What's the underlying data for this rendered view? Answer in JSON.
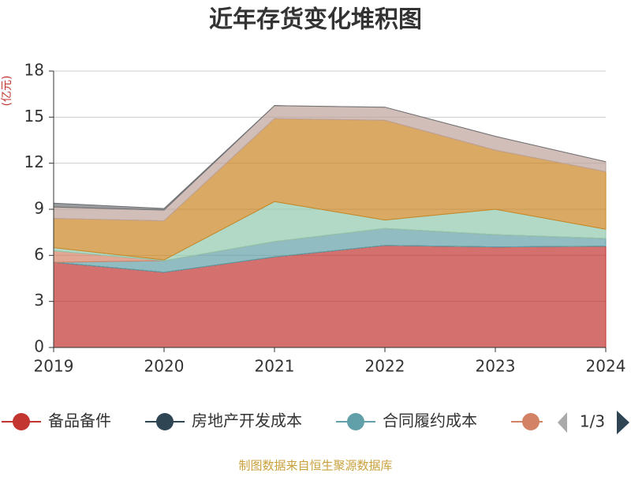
{
  "chart_data": {
    "type": "stacked-area",
    "title": "近年存货变化堆积图",
    "y_label": "(亿元)",
    "source": "制图数据来自恒生聚源数据库",
    "legend_page": "1/3",
    "categories": [
      "2019",
      "2020",
      "2021",
      "2022",
      "2023",
      "2024"
    ],
    "ylim": [
      0,
      18
    ],
    "yticks": [
      0,
      3,
      6,
      9,
      12,
      15,
      18
    ],
    "grid": true,
    "series": [
      {
        "name": "备品备件",
        "color": "#c23531",
        "values": [
          5.55,
          4.9,
          5.9,
          6.65,
          6.55,
          6.6
        ]
      },
      {
        "name": "房地产开发成本",
        "color": "#2f4554",
        "values": [
          0,
          0,
          0,
          0,
          0,
          0
        ]
      },
      {
        "name": "合同履约成本",
        "color": "#61a0a8",
        "values": [
          0,
          0.75,
          1.0,
          1.1,
          0.8,
          0.5
        ]
      },
      {
        "color": "#d48265",
        "values": [
          0.75,
          0,
          0,
          0,
          0,
          0
        ]
      },
      {
        "color": "#91c7ae",
        "values": [
          0.2,
          0.05,
          2.6,
          0.55,
          1.65,
          0.6
        ]
      },
      {
        "color": "#ca8622",
        "values": [
          1.9,
          2.55,
          5.4,
          6.5,
          3.85,
          3.75
        ]
      },
      {
        "color": "#bda29a",
        "values": [
          0.75,
          0.7,
          0.85,
          0.85,
          0.9,
          0.65
        ]
      },
      {
        "color": "#6e7074",
        "values": [
          0.25,
          0.1,
          0,
          0,
          0,
          0
        ]
      }
    ]
  }
}
